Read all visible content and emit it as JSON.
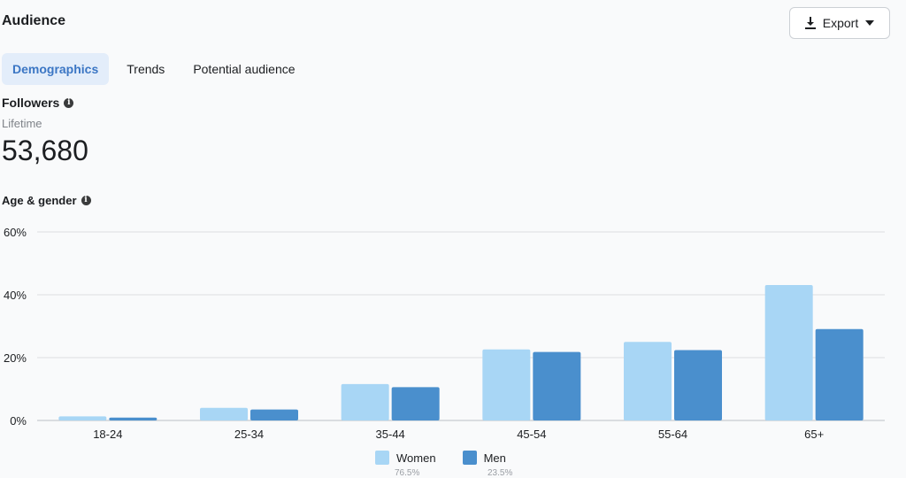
{
  "header": {
    "title": "Audience"
  },
  "toolbar": {
    "export_label": "Export",
    "export_icon": "download-icon",
    "caret_icon": "caret-down-icon"
  },
  "tabs": [
    {
      "label": "Demographics",
      "active": true
    },
    {
      "label": "Trends",
      "active": false
    },
    {
      "label": "Potential audience",
      "active": false
    }
  ],
  "followers": {
    "title": "Followers",
    "period": "Lifetime",
    "count": "53,680",
    "info_icon": "info-icon"
  },
  "age_gender": {
    "title": "Age & gender",
    "info_icon": "info-icon"
  },
  "legend": [
    {
      "name": "Women",
      "sub": "76.5%",
      "color": "#a8d6f5"
    },
    {
      "name": "Men",
      "sub": "23.5%",
      "color": "#4a8fcd"
    }
  ],
  "chart_data": {
    "type": "bar",
    "categories": [
      "18-24",
      "25-34",
      "35-44",
      "45-54",
      "55-64",
      "65+"
    ],
    "series": [
      {
        "name": "Women",
        "values": [
          1.3,
          4.0,
          11.6,
          22.6,
          25.0,
          43.1
        ],
        "color": "#a8d6f5"
      },
      {
        "name": "Men",
        "values": [
          0.9,
          3.5,
          10.6,
          21.8,
          22.4,
          29.1
        ],
        "color": "#4a8fcd"
      }
    ],
    "yticks": [
      "0%",
      "20%",
      "40%",
      "60%"
    ],
    "ytick_values": [
      0,
      20,
      40,
      60
    ],
    "ylim": [
      0,
      60
    ],
    "grid": true,
    "legend_position": "bottom"
  }
}
